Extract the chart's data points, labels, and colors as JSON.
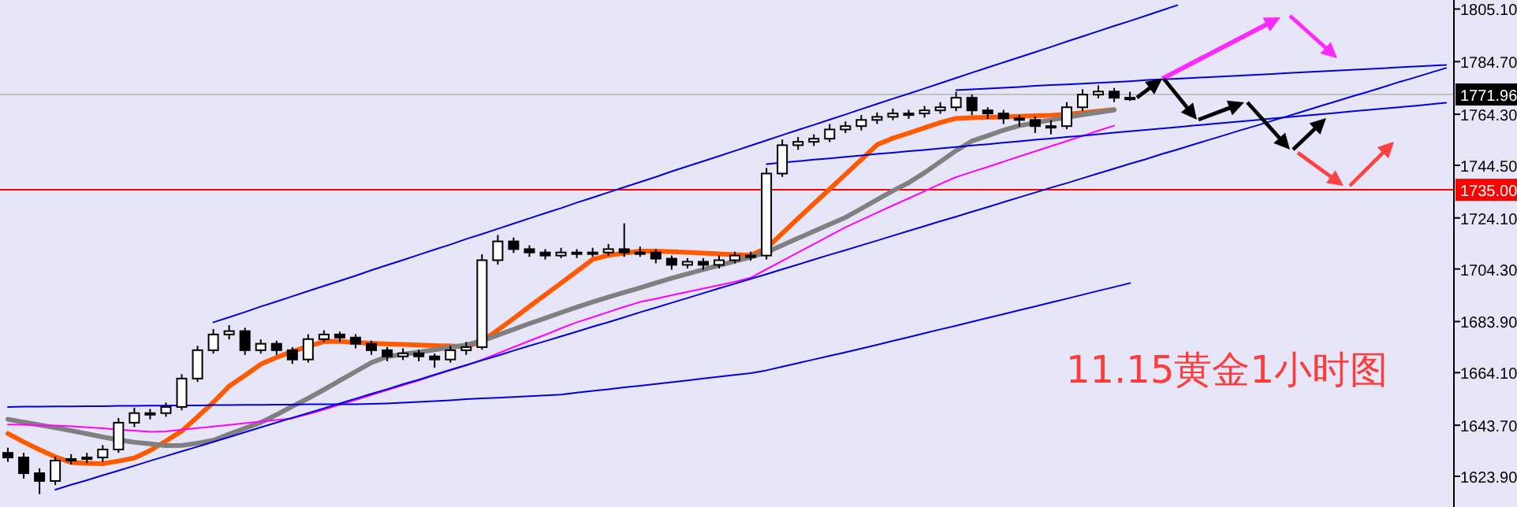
{
  "chart_data": {
    "type": "candlestick",
    "annotations": [
      "11.15黄金1小时图"
    ],
    "categories": [
      null,
      null,
      null,
      null,
      null,
      null,
      null,
      null,
      null,
      null,
      null,
      null,
      null,
      null,
      null,
      null,
      null,
      null,
      null,
      null,
      null,
      null,
      null,
      null,
      null,
      null,
      null,
      null,
      null,
      null,
      null,
      null,
      null,
      null,
      null,
      null,
      null,
      null,
      null,
      null,
      null,
      null,
      null,
      null,
      null,
      null,
      null,
      null,
      null,
      null,
      null,
      null,
      null,
      null,
      null,
      null,
      null,
      null,
      null,
      null,
      null,
      null,
      null,
      null,
      null,
      null,
      null,
      null,
      null,
      null,
      null,
      null,
      null,
      null,
      null,
      null,
      null,
      null,
      null,
      null,
      null,
      null,
      null,
      null,
      null,
      null,
      null,
      null,
      null,
      null,
      null,
      null
    ],
    "ohlc": [
      [
        1633.0,
        1635.0,
        1629.5,
        1631.2
      ],
      [
        1631.2,
        1633.0,
        1623.0,
        1625.1
      ],
      [
        1625.1,
        1627.0,
        1617.0,
        1622.1
      ],
      [
        1622.1,
        1631.5,
        1620.5,
        1630.0
      ],
      [
        1630.0,
        1632.5,
        1628.5,
        1630.6
      ],
      [
        1630.6,
        1633.0,
        1629.0,
        1631.2
      ],
      [
        1631.2,
        1636.0,
        1629.5,
        1634.3
      ],
      [
        1634.3,
        1646.5,
        1633.0,
        1644.7
      ],
      [
        1644.7,
        1650.5,
        1643.0,
        1648.4
      ],
      [
        1648.4,
        1650.0,
        1646.0,
        1648.4
      ],
      [
        1648.4,
        1652.5,
        1647.0,
        1650.8
      ],
      [
        1650.8,
        1663.5,
        1649.5,
        1661.8
      ],
      [
        1661.8,
        1674.5,
        1660.5,
        1672.8
      ],
      [
        1672.8,
        1681.0,
        1671.5,
        1678.9
      ],
      [
        1678.9,
        1682.5,
        1677.0,
        1680.2
      ],
      [
        1680.2,
        1681.5,
        1671.0,
        1672.8
      ],
      [
        1672.8,
        1677.0,
        1671.5,
        1675.3
      ],
      [
        1675.3,
        1676.5,
        1671.0,
        1672.8
      ],
      [
        1672.8,
        1674.0,
        1667.5,
        1669.2
      ],
      [
        1669.2,
        1679.0,
        1668.0,
        1677.1
      ],
      [
        1677.1,
        1680.5,
        1676.0,
        1678.9
      ],
      [
        1678.9,
        1680.0,
        1676.0,
        1677.7
      ],
      [
        1677.7,
        1679.0,
        1673.5,
        1675.3
      ],
      [
        1675.3,
        1676.5,
        1671.0,
        1672.8
      ],
      [
        1672.8,
        1674.0,
        1668.5,
        1670.4
      ],
      [
        1670.4,
        1673.5,
        1669.0,
        1671.6
      ],
      [
        1671.6,
        1673.0,
        1668.5,
        1670.4
      ],
      [
        1670.4,
        1671.5,
        1666.0,
        1669.2
      ],
      [
        1669.2,
        1674.5,
        1668.0,
        1672.8
      ],
      [
        1672.8,
        1676.0,
        1671.0,
        1674.0
      ],
      [
        1674.0,
        1710.0,
        1673.0,
        1707.7
      ],
      [
        1707.7,
        1717.5,
        1706.0,
        1715.0
      ],
      [
        1715.0,
        1716.5,
        1710.5,
        1712.0
      ],
      [
        1712.0,
        1713.5,
        1709.0,
        1710.7
      ],
      [
        1710.7,
        1712.0,
        1708.0,
        1709.5
      ],
      [
        1709.5,
        1712.5,
        1708.5,
        1710.7
      ],
      [
        1710.7,
        1712.0,
        1708.5,
        1710.1
      ],
      [
        1710.1,
        1712.5,
        1709.0,
        1710.7
      ],
      [
        1710.7,
        1714.0,
        1709.5,
        1712.0
      ],
      [
        1712.0,
        1722.0,
        1709.0,
        1710.7
      ],
      [
        1710.7,
        1713.0,
        1709.0,
        1710.7
      ],
      [
        1710.7,
        1712.0,
        1706.5,
        1708.3
      ],
      [
        1708.3,
        1709.5,
        1704.0,
        1705.9
      ],
      [
        1705.9,
        1708.5,
        1704.5,
        1707.1
      ],
      [
        1707.1,
        1708.5,
        1704.0,
        1705.9
      ],
      [
        1705.9,
        1709.5,
        1704.5,
        1707.7
      ],
      [
        1707.7,
        1711.0,
        1706.5,
        1709.5
      ],
      [
        1709.5,
        1711.0,
        1707.5,
        1709.5
      ],
      [
        1709.5,
        1743.5,
        1708.0,
        1741.3
      ],
      [
        1741.3,
        1754.5,
        1740.0,
        1752.3
      ],
      [
        1752.3,
        1755.5,
        1750.5,
        1753.6
      ],
      [
        1753.6,
        1756.5,
        1752.0,
        1754.8
      ],
      [
        1754.8,
        1760.5,
        1753.5,
        1758.4
      ],
      [
        1758.4,
        1761.5,
        1757.0,
        1759.7
      ],
      [
        1759.7,
        1764.0,
        1758.0,
        1762.1
      ],
      [
        1762.1,
        1765.0,
        1760.5,
        1763.3
      ],
      [
        1763.3,
        1766.5,
        1762.0,
        1764.6
      ],
      [
        1764.6,
        1766.0,
        1762.5,
        1764.6
      ],
      [
        1764.6,
        1767.5,
        1763.0,
        1765.8
      ],
      [
        1765.8,
        1769.0,
        1764.5,
        1767.0
      ],
      [
        1767.0,
        1773.0,
        1765.5,
        1770.7
      ],
      [
        1770.7,
        1772.0,
        1764.0,
        1765.8
      ],
      [
        1765.8,
        1767.0,
        1762.5,
        1764.6
      ],
      [
        1764.6,
        1766.0,
        1760.5,
        1762.7
      ],
      [
        1762.7,
        1764.0,
        1759.5,
        1762.1
      ],
      [
        1762.1,
        1763.5,
        1757.0,
        1759.7
      ],
      [
        1759.7,
        1762.0,
        1756.5,
        1759.7
      ],
      [
        1759.7,
        1769.0,
        1758.5,
        1767.0
      ],
      [
        1767.0,
        1774.0,
        1765.5,
        1771.9
      ],
      [
        1771.9,
        1775.5,
        1770.5,
        1773.1
      ],
      [
        1773.1,
        1774.5,
        1769.0,
        1770.7
      ],
      [
        1770.7,
        1773.0,
        1769.5,
        1770.7
      ],
      null,
      null,
      null,
      null,
      null,
      null,
      null,
      null,
      null,
      null,
      null,
      null,
      null,
      null,
      null,
      null,
      null,
      null,
      null,
      null
    ],
    "series": [
      {
        "type": "line",
        "color": "#ff5a00",
        "values": [
          1640.5,
          1637.2,
          1634.2,
          1631.5,
          1629.3,
          1629.0,
          1628.8,
          1629.8,
          1631.0,
          1633.9,
          1637.6,
          1641.5,
          1647.0,
          1652.6,
          1658.8,
          1663.0,
          1667.4,
          1670.0,
          1672.3,
          1674.3,
          1676.2,
          1676.2,
          1675.8,
          1675.5,
          1675.2,
          1675.0,
          1674.8,
          1674.6,
          1674.4,
          1674.2,
          1676.2,
          1680.6,
          1685.1,
          1689.7,
          1694.3,
          1698.8,
          1703.4,
          1708.0,
          1709.6,
          1710.4,
          1711.2,
          1711.2,
          1711.0,
          1710.7,
          1710.4,
          1710.2,
          1709.9,
          1709.6,
          1712.4,
          1718.1,
          1723.9,
          1729.6,
          1735.3,
          1741.0,
          1746.7,
          1752.5,
          1755.0,
          1757.0,
          1759.0,
          1761.1,
          1762.7,
          1762.9,
          1763.1,
          1763.3,
          1763.5,
          1763.7,
          1763.9,
          1764.3,
          1764.9,
          1765.5,
          1766.1,
          null,
          null,
          null,
          null,
          null,
          null,
          null,
          null,
          null,
          null,
          null,
          null,
          null,
          null,
          null,
          null,
          null,
          null,
          null,
          null,
          null
        ]
      },
      {
        "type": "line",
        "color": "#808080",
        "values": [
          1646.0,
          1644.9,
          1643.8,
          1642.7,
          1641.6,
          1640.4,
          1639.2,
          1638.0,
          1637.1,
          1636.5,
          1635.8,
          1635.9,
          1636.7,
          1637.9,
          1640.2,
          1642.5,
          1644.8,
          1647.8,
          1651.0,
          1654.1,
          1657.5,
          1661.0,
          1664.5,
          1668.0,
          1670.3,
          1671.2,
          1672.1,
          1673.0,
          1673.9,
          1674.8,
          1676.4,
          1678.7,
          1680.9,
          1683.1,
          1685.2,
          1687.4,
          1689.5,
          1691.5,
          1693.4,
          1695.2,
          1697.0,
          1698.9,
          1700.7,
          1702.4,
          1704.1,
          1705.7,
          1707.3,
          1708.9,
          1710.8,
          1713.5,
          1716.2,
          1718.9,
          1721.6,
          1724.3,
          1727.7,
          1731.2,
          1734.6,
          1737.8,
          1741.6,
          1745.9,
          1750.2,
          1753.9,
          1756.0,
          1758.1,
          1759.9,
          1761.0,
          1762.1,
          1763.1,
          1764.1,
          1765.0,
          1765.9,
          null,
          null,
          null,
          null,
          null,
          null,
          null,
          null,
          null,
          null,
          null,
          null,
          null,
          null,
          null,
          null,
          null,
          null,
          null,
          null,
          null
        ]
      },
      {
        "type": "line",
        "color": "#ff00ff",
        "values": [
          1644.0,
          1643.9,
          1643.7,
          1643.6,
          1643.3,
          1642.9,
          1642.5,
          1642.0,
          1641.6,
          1641.2,
          1641.3,
          1642.0,
          1642.6,
          1643.2,
          1643.8,
          1644.5,
          1645.1,
          1645.7,
          1646.4,
          1648.0,
          1649.8,
          1651.7,
          1653.5,
          1655.4,
          1657.3,
          1659.2,
          1661.1,
          1663.1,
          1665.0,
          1666.9,
          1669.1,
          1671.5,
          1674.0,
          1676.4,
          1678.8,
          1681.3,
          1683.6,
          1685.6,
          1687.6,
          1689.6,
          1691.5,
          1692.8,
          1694.1,
          1695.4,
          1696.7,
          1698.0,
          1699.3,
          1700.9,
          1704.2,
          1707.4,
          1710.7,
          1713.9,
          1717.2,
          1720.5,
          1723.3,
          1726.1,
          1728.9,
          1731.7,
          1734.5,
          1737.3,
          1739.9,
          1741.9,
          1743.9,
          1745.9,
          1747.9,
          1749.9,
          1751.9,
          1753.9,
          1755.9,
          1757.9,
          1759.9,
          null,
          null,
          null,
          null,
          null,
          null,
          null,
          null,
          null,
          null,
          null,
          null,
          null,
          null,
          null,
          null,
          null,
          null,
          null,
          null,
          null
        ]
      },
      {
        "type": "line",
        "color": "#0000dd",
        "values": [
          null,
          null,
          null,
          null,
          null,
          null,
          null,
          null,
          null,
          null,
          null,
          null,
          null,
          1683.6,
          1685.6,
          1687.6,
          1689.7,
          1691.7,
          1693.7,
          1695.7,
          1697.7,
          1699.7,
          1701.7,
          1703.8,
          1705.8,
          1707.8,
          1709.8,
          1711.8,
          1713.8,
          1715.9,
          1717.9,
          1719.9,
          1721.9,
          1723.9,
          1725.9,
          1727.9,
          1730.0,
          1732.0,
          1734.0,
          1736.0,
          1738.0,
          1740.0,
          1742.1,
          1744.1,
          1746.1,
          1748.1,
          1750.1,
          1752.1,
          1754.2,
          1756.2,
          1758.2,
          1760.2,
          1762.2,
          1764.2,
          1766.3,
          1768.3,
          1770.3,
          1772.3,
          1774.3,
          1776.3,
          1778.4,
          1780.4,
          1782.4,
          1784.4,
          1786.4,
          1788.4,
          1790.4,
          1792.5,
          1794.5,
          1796.5,
          1798.5,
          1800.5,
          1802.5,
          1804.6,
          1806.6,
          null,
          null,
          null,
          null,
          null,
          null,
          null,
          null,
          null,
          null,
          null,
          null,
          null,
          null,
          null,
          null,
          null
        ]
      },
      {
        "type": "line",
        "color": "#0000dd",
        "values": [
          null,
          null,
          null,
          1618.7,
          1620.6,
          1622.4,
          1624.3,
          1626.1,
          1628.0,
          1629.9,
          1631.7,
          1633.6,
          1635.4,
          1637.3,
          1639.1,
          1641.0,
          1642.9,
          1644.7,
          1646.6,
          1648.4,
          1650.3,
          1652.2,
          1654.0,
          1655.9,
          1657.7,
          1659.6,
          1661.4,
          1663.3,
          1665.2,
          1667.0,
          1668.9,
          1670.7,
          1672.6,
          1674.5,
          1676.3,
          1678.2,
          1680.0,
          1681.9,
          1683.7,
          1685.6,
          1687.5,
          1689.3,
          1691.2,
          1693.0,
          1694.9,
          1696.8,
          1698.6,
          1700.5,
          1702.3,
          1704.2,
          1706.0,
          1707.9,
          1709.8,
          1711.6,
          1713.5,
          1715.3,
          1717.2,
          1719.1,
          1720.9,
          1722.8,
          1724.6,
          1726.5,
          1728.3,
          1730.2,
          1732.1,
          1733.9,
          1735.8,
          1737.6,
          1739.5,
          1741.4,
          1743.2,
          1745.1,
          1746.9,
          1748.8,
          1750.6,
          1752.5,
          1754.4,
          1756.2,
          1758.1,
          1759.9,
          1761.8,
          1763.6,
          1765.5,
          1767.4,
          1769.2,
          1771.1,
          1772.9,
          1774.8,
          1776.7,
          1778.5,
          1780.4,
          1782.2
        ]
      },
      {
        "type": "line",
        "color": "#0000dd",
        "values": [
          null,
          null,
          null,
          null,
          null,
          null,
          null,
          null,
          null,
          null,
          null,
          null,
          null,
          null,
          null,
          null,
          null,
          null,
          null,
          null,
          null,
          null,
          null,
          null,
          null,
          null,
          null,
          null,
          null,
          null,
          null,
          null,
          null,
          null,
          null,
          null,
          null,
          null,
          null,
          null,
          null,
          null,
          null,
          null,
          null,
          null,
          null,
          null,
          null,
          null,
          null,
          null,
          null,
          null,
          null,
          null,
          null,
          null,
          null,
          null,
          1773.7,
          1774.0,
          1774.3,
          1774.6,
          1774.9,
          1775.3,
          1775.6,
          1775.9,
          1776.2,
          1776.5,
          1776.8,
          1777.1,
          1777.5,
          1777.8,
          1778.1,
          1778.4,
          1778.7,
          1779.0,
          1779.3,
          1779.6,
          1779.9,
          1780.3,
          1780.6,
          1780.9,
          1781.2,
          1781.5,
          1781.8,
          1782.1,
          1782.5,
          1782.8,
          1783.1,
          1783.4
        ]
      },
      {
        "type": "line",
        "color": "#0000dd",
        "values": [
          null,
          null,
          null,
          null,
          null,
          null,
          null,
          null,
          null,
          null,
          null,
          null,
          null,
          null,
          null,
          null,
          null,
          null,
          null,
          null,
          null,
          null,
          null,
          null,
          null,
          null,
          null,
          null,
          null,
          null,
          null,
          null,
          null,
          null,
          null,
          null,
          null,
          null,
          null,
          null,
          null,
          null,
          null,
          null,
          null,
          null,
          null,
          null,
          1745.0,
          1745.6,
          1746.1,
          1746.7,
          1747.2,
          1747.8,
          1748.3,
          1748.9,
          1749.4,
          1750.0,
          1750.5,
          1751.1,
          1751.6,
          1752.2,
          1752.7,
          1753.3,
          1753.8,
          1754.4,
          1754.9,
          1755.5,
          1756.0,
          1756.6,
          1757.1,
          1757.7,
          1758.2,
          1758.8,
          1759.3,
          1759.9,
          1760.4,
          1761.0,
          1761.5,
          1762.1,
          1762.6,
          1763.2,
          1763.7,
          1764.3,
          1764.8,
          1765.4,
          1765.9,
          1766.5,
          1767.0,
          1767.6,
          1768.1,
          1768.7
        ]
      },
      {
        "type": "line",
        "color": "#0000dd",
        "values": [
          1650.8,
          1650.9,
          1650.9,
          1651.0,
          1651.0,
          1651.1,
          1651.1,
          1651.2,
          1651.2,
          1651.3,
          1651.3,
          1651.4,
          1651.4,
          1651.5,
          1651.5,
          1651.6,
          1651.6,
          1651.7,
          1651.7,
          1651.8,
          1651.8,
          1651.9,
          1651.9,
          1652.0,
          1652.2,
          1652.5,
          1652.8,
          1653.1,
          1653.4,
          1653.8,
          1654.1,
          1654.4,
          1654.7,
          1655.0,
          1655.3,
          1655.6,
          1656.3,
          1657.0,
          1657.7,
          1658.4,
          1659.0,
          1659.7,
          1660.4,
          1661.1,
          1661.8,
          1662.5,
          1663.2,
          1663.9,
          1665.0,
          1666.4,
          1667.8,
          1669.2,
          1670.6,
          1672.0,
          1673.4,
          1674.9,
          1676.4,
          1677.9,
          1679.4,
          1680.9,
          1682.3,
          1683.8,
          1685.3,
          1686.8,
          1688.3,
          1689.8,
          1691.3,
          1692.8,
          1694.3,
          1695.8,
          1697.3,
          1698.8,
          null,
          null,
          null,
          null,
          null,
          null,
          null,
          null,
          null,
          null,
          null,
          null,
          null,
          null,
          null,
          null,
          null,
          null,
          null,
          null
        ]
      }
    ],
    "ylim": [
      1612,
      1808.6
    ],
    "yticks": [
      {
        "value": 1623.9,
        "label": "1623.90"
      },
      {
        "value": 1643.7,
        "label": "1643.70"
      },
      {
        "value": 1664.1,
        "label": "1664.10"
      },
      {
        "value": 1683.9,
        "label": "1683.90"
      },
      {
        "value": 1704.3,
        "label": "1704.30"
      },
      {
        "value": 1724.1,
        "label": "1724.10"
      },
      {
        "value": 1744.5,
        "label": "1744.50"
      },
      {
        "value": 1764.3,
        "label": "1764.30"
      },
      {
        "value": 1784.7,
        "label": "1784.70"
      },
      {
        "value": 1805.1,
        "label": "1805.10"
      }
    ],
    "ref_lines": [
      {
        "axis": "y",
        "value": 1771.96,
        "label": "1771.96",
        "color": "#c0c0c0"
      },
      {
        "axis": "y",
        "value": 1735,
        "label": "1735.00",
        "color": "#ff0000"
      }
    ],
    "tick_labels": "y",
    "grid": false
  }
}
